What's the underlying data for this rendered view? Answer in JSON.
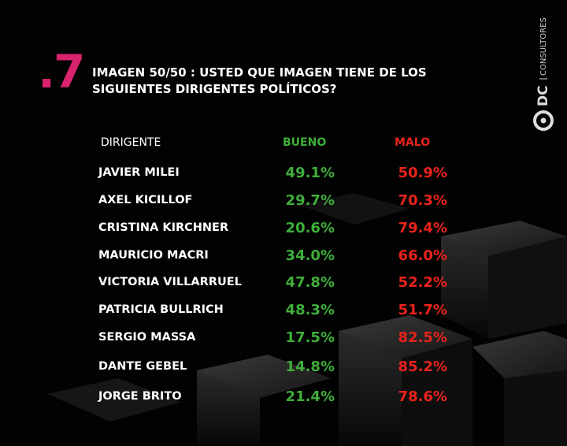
{
  "header": {
    "number": ".7",
    "title_lines": [
      "IMAGEN 50/50 : USTED QUE IMAGEN TIENE DE LOS",
      "SIGUIENTES DIRIGENTES POLÍTICOS?"
    ]
  },
  "logo": {
    "brand": "DC",
    "subtitle": "CONSULTORES"
  },
  "table": {
    "columns": [
      "DIRIGENTE",
      "BUENO",
      "MALO"
    ],
    "rows": [
      [
        "JAVIER MILEI",
        "49.1%",
        "50.9%"
      ],
      [
        "AXEL KICILLOF",
        "29.7%",
        "70.3%"
      ],
      [
        "CRISTINA KIRCHNER",
        "20.6%",
        "79.4%"
      ],
      [
        "MAURICIO MACRI",
        "34.0%",
        "66.0%"
      ],
      [
        "VICTORIA VILLARRUEL",
        "47.8%",
        "52.2%"
      ],
      [
        "PATRICIA BULLRICH",
        "48.3%",
        "51.7%"
      ],
      [
        "SERGIO MASSA",
        "17.5%",
        "82.5%"
      ],
      [
        "DANTE GEBEL",
        "14.8%",
        "85.2%"
      ],
      [
        "JORGE BRITO",
        "21.4%",
        "78.6%"
      ]
    ]
  }
}
